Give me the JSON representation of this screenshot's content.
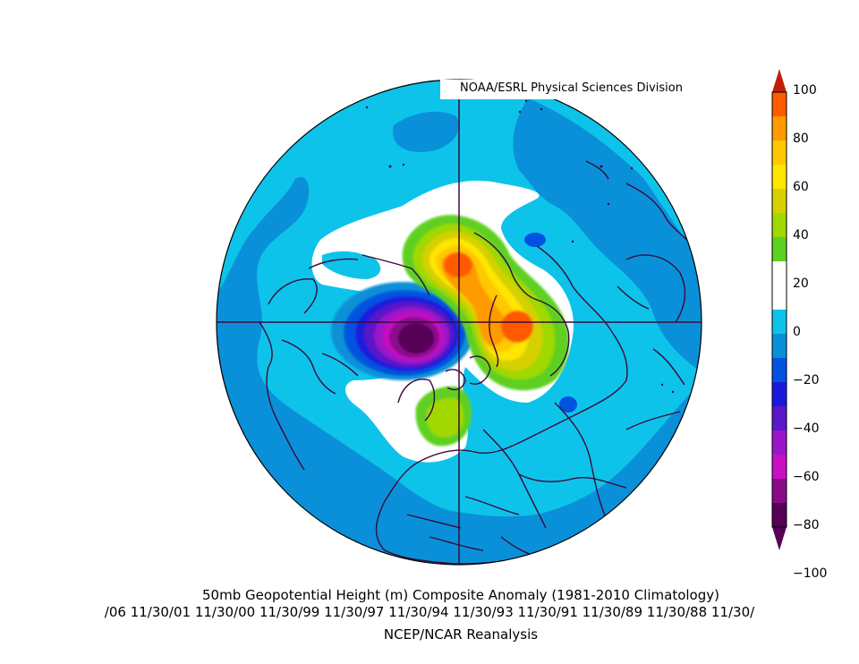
{
  "credit": "NOAA/ESRL Physical Sciences Division",
  "title": "50mb Geopotential Height (m) Composite Anomaly (1981-2010 Climatology)",
  "dates_line": "/06 11/30/01 11/30/00 11/30/99 11/30/97 11/30/94 11/30/93 11/30/91 11/30/89 11/30/88 11/30/",
  "source": "NCEP/NCAR Reanalysis",
  "colorbar": {
    "labels": [
      "100",
      "80",
      "60",
      "40",
      "20",
      "0",
      "−20",
      "−40",
      "−60",
      "−80",
      "−100"
    ],
    "colors": {
      "100": "#c01e0a",
      "80": "#ff5a00",
      "70": "#ff9a00",
      "60": "#ffc800",
      "50": "#ffe600",
      "40": "#d6d000",
      "30": "#a0d800",
      "20": "#5ed020",
      "0": "#ffffff",
      "neg20": "#0ec3ea",
      "neg30": "#0a90d8",
      "neg40": "#0052e0",
      "neg50": "#1a1adc",
      "neg60": "#5a18c8",
      "neg70": "#9a16c8",
      "neg80": "#c610c2",
      "neg90": "#8a0a8a",
      "neg100": "#560056"
    }
  }
}
